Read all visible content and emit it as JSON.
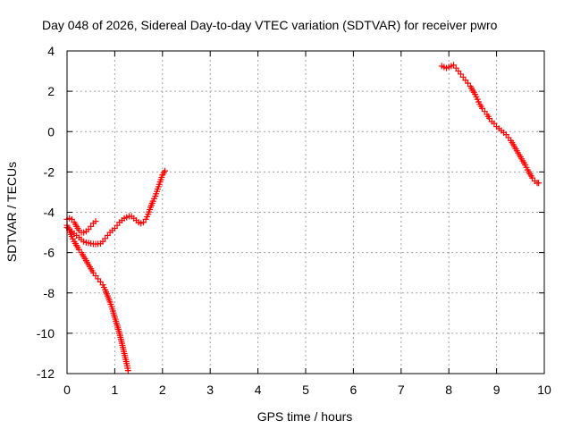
{
  "chart_data": {
    "type": "scatter",
    "title": "Day 048 of 2026, Sidereal Day-to-day VTEC variation (SDTVAR) for receiver pwro",
    "xlabel": "GPS time / hours",
    "ylabel": "SDTVAR / TECUs",
    "xlim": [
      0,
      10
    ],
    "ylim": [
      -12,
      4
    ],
    "xticks": [
      0,
      1,
      2,
      3,
      4,
      5,
      6,
      7,
      8,
      9,
      10
    ],
    "yticks": [
      -12,
      -10,
      -8,
      -6,
      -4,
      -2,
      0,
      2,
      4
    ],
    "grid": true,
    "marker": "plus",
    "color": "#ff0000",
    "series": [
      {
        "points": [
          [
            0.0,
            -4.75
          ],
          [
            0.05,
            -4.85
          ],
          [
            0.1,
            -4.95
          ],
          [
            0.15,
            -5.05
          ],
          [
            0.2,
            -5.15
          ],
          [
            0.25,
            -5.25
          ],
          [
            0.3,
            -5.35
          ],
          [
            0.35,
            -5.45
          ],
          [
            0.4,
            -5.5
          ],
          [
            0.45,
            -5.52
          ],
          [
            0.5,
            -5.55
          ],
          [
            0.55,
            -5.57
          ],
          [
            0.6,
            -5.58
          ],
          [
            0.65,
            -5.57
          ],
          [
            0.7,
            -5.55
          ],
          [
            0.75,
            -5.45
          ],
          [
            0.8,
            -5.3
          ],
          [
            0.85,
            -5.15
          ],
          [
            0.9,
            -5.0
          ],
          [
            0.95,
            -4.9
          ],
          [
            1.0,
            -4.8
          ],
          [
            1.05,
            -4.65
          ],
          [
            1.1,
            -4.5
          ],
          [
            1.15,
            -4.4
          ],
          [
            1.2,
            -4.3
          ],
          [
            1.25,
            -4.25
          ],
          [
            1.3,
            -4.2
          ],
          [
            1.35,
            -4.2
          ],
          [
            1.4,
            -4.3
          ],
          [
            1.45,
            -4.4
          ],
          [
            1.5,
            -4.5
          ],
          [
            1.55,
            -4.55
          ],
          [
            1.6,
            -4.5
          ],
          [
            1.65,
            -4.35
          ],
          [
            1.7,
            -4.1
          ],
          [
            1.75,
            -3.75
          ],
          [
            1.8,
            -3.45
          ],
          [
            1.85,
            -3.2
          ],
          [
            1.9,
            -2.85
          ],
          [
            1.95,
            -2.5
          ],
          [
            2.0,
            -2.15
          ],
          [
            2.05,
            -1.95
          ]
        ]
      },
      {
        "points": [
          [
            0.0,
            -4.35
          ],
          [
            0.05,
            -4.3
          ],
          [
            0.1,
            -4.35
          ],
          [
            0.15,
            -4.5
          ],
          [
            0.2,
            -4.7
          ],
          [
            0.25,
            -4.9
          ],
          [
            0.3,
            -5.0
          ],
          [
            0.35,
            -5.0
          ],
          [
            0.4,
            -4.95
          ],
          [
            0.45,
            -4.85
          ],
          [
            0.5,
            -4.7
          ],
          [
            0.55,
            -4.55
          ],
          [
            0.6,
            -4.45
          ]
        ]
      },
      {
        "points": [
          [
            0.0,
            -4.65
          ],
          [
            0.05,
            -4.9
          ],
          [
            0.1,
            -5.2
          ],
          [
            0.15,
            -5.45
          ],
          [
            0.2,
            -5.65
          ],
          [
            0.25,
            -5.85
          ],
          [
            0.3,
            -6.0
          ],
          [
            0.35,
            -6.2
          ],
          [
            0.4,
            -6.4
          ],
          [
            0.45,
            -6.6
          ],
          [
            0.5,
            -6.8
          ],
          [
            0.55,
            -7.0
          ],
          [
            0.6,
            -7.15
          ],
          [
            0.65,
            -7.3
          ],
          [
            0.7,
            -7.45
          ],
          [
            0.75,
            -7.6
          ],
          [
            0.8,
            -7.85
          ],
          [
            0.85,
            -8.15
          ],
          [
            0.9,
            -8.45
          ],
          [
            0.95,
            -8.8
          ],
          [
            1.0,
            -9.2
          ],
          [
            1.05,
            -9.6
          ],
          [
            1.1,
            -10.0
          ],
          [
            1.15,
            -10.5
          ],
          [
            1.2,
            -11.0
          ],
          [
            1.25,
            -11.5
          ],
          [
            1.28,
            -11.85
          ]
        ]
      },
      {
        "points": [
          [
            7.85,
            3.25
          ],
          [
            7.9,
            3.2
          ],
          [
            7.95,
            3.15
          ],
          [
            8.0,
            3.2
          ],
          [
            8.05,
            3.25
          ],
          [
            8.1,
            3.3
          ],
          [
            8.15,
            3.15
          ],
          [
            8.2,
            3.0
          ],
          [
            8.25,
            2.85
          ],
          [
            8.3,
            2.7
          ],
          [
            8.35,
            2.55
          ],
          [
            8.4,
            2.4
          ],
          [
            8.45,
            2.25
          ],
          [
            8.5,
            2.05
          ],
          [
            8.55,
            1.85
          ],
          [
            8.6,
            1.6
          ],
          [
            8.65,
            1.35
          ],
          [
            8.7,
            1.15
          ],
          [
            8.75,
            1.0
          ],
          [
            8.8,
            0.85
          ],
          [
            8.85,
            0.65
          ],
          [
            8.9,
            0.5
          ],
          [
            8.95,
            0.4
          ],
          [
            9.0,
            0.25
          ],
          [
            9.05,
            0.15
          ],
          [
            9.1,
            0.05
          ],
          [
            9.15,
            -0.05
          ],
          [
            9.2,
            -0.15
          ],
          [
            9.25,
            -0.3
          ],
          [
            9.3,
            -0.45
          ],
          [
            9.35,
            -0.65
          ],
          [
            9.4,
            -0.85
          ],
          [
            9.45,
            -1.05
          ],
          [
            9.5,
            -1.25
          ],
          [
            9.55,
            -1.45
          ],
          [
            9.6,
            -1.65
          ],
          [
            9.65,
            -1.9
          ],
          [
            9.7,
            -2.1
          ],
          [
            9.75,
            -2.3
          ],
          [
            9.8,
            -2.45
          ],
          [
            9.85,
            -2.55
          ],
          [
            9.88,
            -2.55
          ]
        ]
      }
    ]
  }
}
